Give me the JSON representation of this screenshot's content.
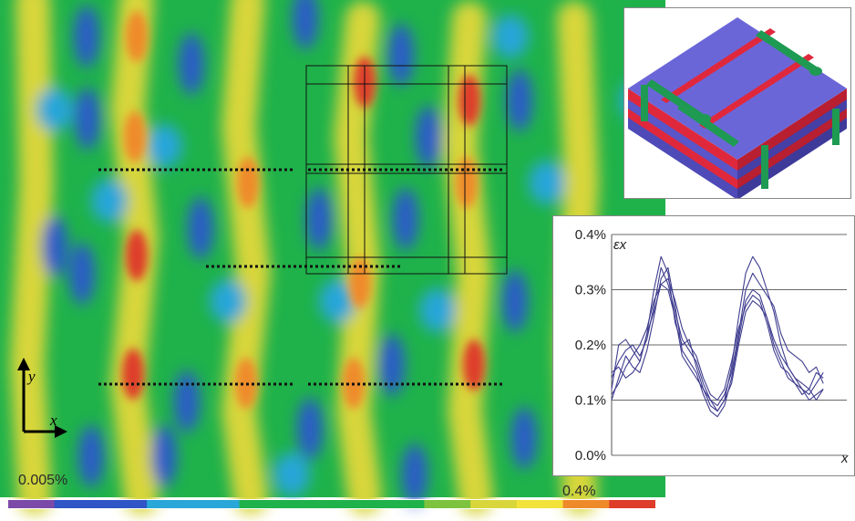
{
  "legend": {
    "min_label": "0.005%",
    "max_label": "0.4%"
  },
  "axes_indicator": {
    "y_label": "y",
    "x_label": "x"
  },
  "chart_data": {
    "type": "line",
    "ylabel": "εx",
    "xlabel": "x",
    "ylim": [
      0,
      0.4
    ],
    "xlim": [
      0,
      1
    ],
    "yticks": [
      "0.0%",
      "0.1%",
      "0.2%",
      "0.3%",
      "0.4%"
    ],
    "ytick_values": [
      0,
      0.1,
      0.2,
      0.3,
      0.4
    ],
    "grid": true,
    "series": [
      {
        "x": [
          0,
          0.03,
          0.06,
          0.09,
          0.12,
          0.15,
          0.18,
          0.21,
          0.24,
          0.27,
          0.3,
          0.33,
          0.36,
          0.39,
          0.42,
          0.45,
          0.48,
          0.51,
          0.54,
          0.57,
          0.6,
          0.63,
          0.66,
          0.69,
          0.72,
          0.75,
          0.78,
          0.81,
          0.84,
          0.87,
          0.9
        ],
        "values": [
          0.12,
          0.2,
          0.21,
          0.19,
          0.17,
          0.22,
          0.3,
          0.36,
          0.33,
          0.24,
          0.2,
          0.21,
          0.16,
          0.12,
          0.09,
          0.08,
          0.1,
          0.16,
          0.25,
          0.33,
          0.36,
          0.34,
          0.3,
          0.26,
          0.2,
          0.16,
          0.14,
          0.13,
          0.12,
          0.15,
          0.14
        ]
      },
      {
        "x": [
          0,
          0.03,
          0.06,
          0.09,
          0.12,
          0.15,
          0.18,
          0.21,
          0.24,
          0.27,
          0.3,
          0.33,
          0.36,
          0.39,
          0.42,
          0.45,
          0.48,
          0.51,
          0.54,
          0.57,
          0.6,
          0.63,
          0.66,
          0.69,
          0.72,
          0.75,
          0.78,
          0.81,
          0.84,
          0.87,
          0.9
        ],
        "values": [
          0.14,
          0.17,
          0.19,
          0.2,
          0.18,
          0.21,
          0.27,
          0.34,
          0.31,
          0.26,
          0.21,
          0.19,
          0.17,
          0.13,
          0.1,
          0.09,
          0.11,
          0.15,
          0.22,
          0.3,
          0.33,
          0.31,
          0.29,
          0.27,
          0.22,
          0.19,
          0.18,
          0.17,
          0.15,
          0.16,
          0.13
        ]
      },
      {
        "x": [
          0,
          0.03,
          0.06,
          0.09,
          0.12,
          0.15,
          0.18,
          0.21,
          0.24,
          0.27,
          0.3,
          0.33,
          0.36,
          0.39,
          0.42,
          0.45,
          0.48,
          0.51,
          0.54,
          0.57,
          0.6,
          0.63,
          0.66,
          0.69,
          0.72,
          0.75,
          0.78,
          0.81,
          0.84,
          0.87,
          0.9
        ],
        "values": [
          0.1,
          0.14,
          0.18,
          0.16,
          0.15,
          0.19,
          0.25,
          0.32,
          0.34,
          0.27,
          0.19,
          0.17,
          0.15,
          0.11,
          0.08,
          0.07,
          0.09,
          0.14,
          0.21,
          0.28,
          0.3,
          0.29,
          0.25,
          0.2,
          0.17,
          0.14,
          0.13,
          0.11,
          0.12,
          0.1,
          0.12
        ]
      },
      {
        "x": [
          0,
          0.03,
          0.06,
          0.09,
          0.12,
          0.15,
          0.18,
          0.21,
          0.24,
          0.27,
          0.3,
          0.33,
          0.36,
          0.39,
          0.42,
          0.45,
          0.48,
          0.51,
          0.54,
          0.57,
          0.6,
          0.63,
          0.66,
          0.69,
          0.72,
          0.75,
          0.78,
          0.81,
          0.84,
          0.87,
          0.9
        ],
        "values": [
          0.15,
          0.16,
          0.14,
          0.15,
          0.17,
          0.22,
          0.26,
          0.31,
          0.32,
          0.28,
          0.23,
          0.2,
          0.18,
          0.14,
          0.11,
          0.1,
          0.12,
          0.17,
          0.23,
          0.27,
          0.29,
          0.28,
          0.24,
          0.19,
          0.16,
          0.15,
          0.13,
          0.12,
          0.11,
          0.13,
          0.15
        ]
      },
      {
        "x": [
          0,
          0.03,
          0.06,
          0.09,
          0.12,
          0.15,
          0.18,
          0.21,
          0.24,
          0.27,
          0.3,
          0.33,
          0.36,
          0.39,
          0.42,
          0.45,
          0.48,
          0.51,
          0.54,
          0.57,
          0.6,
          0.63,
          0.66,
          0.69,
          0.72,
          0.75,
          0.78,
          0.81,
          0.84,
          0.87,
          0.9
        ],
        "values": [
          0.11,
          0.13,
          0.16,
          0.18,
          0.2,
          0.23,
          0.28,
          0.31,
          0.3,
          0.25,
          0.18,
          0.16,
          0.14,
          0.12,
          0.1,
          0.08,
          0.1,
          0.13,
          0.2,
          0.26,
          0.28,
          0.27,
          0.25,
          0.21,
          0.18,
          0.16,
          0.14,
          0.12,
          0.1,
          0.11,
          0.12
        ]
      }
    ]
  },
  "colors": {
    "field_green": "#1fb24a",
    "field_blue": "#2a5cc8",
    "field_cyan": "#27a6d9",
    "field_yellow": "#d8d63a",
    "field_orange": "#ef8a2b",
    "field_red": "#de3d2a",
    "curve": "#3f3d8f",
    "model_ply_blue": "#6b66d8",
    "model_ply_red": "#e0283c",
    "model_tow_green": "#1e9a52"
  },
  "colorbar": [
    "#7b4aa8",
    "#2f55c6",
    "#2f55c6",
    "#28a7d8",
    "#28a7d8",
    "#1fb24a",
    "#1fb24a",
    "#1fb24a",
    "#1fb24a",
    "#7ec33d",
    "#d8d63a",
    "#f2e23a",
    "#ef8a2b",
    "#de3d2a"
  ]
}
